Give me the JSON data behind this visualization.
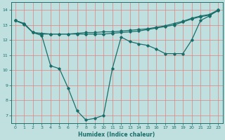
{
  "xlabel": "Humidex (Indice chaleur)",
  "bg_color": "#c0e0e0",
  "line_color": "#1a6e6a",
  "grid_color": "#e08080",
  "xlim": [
    -0.5,
    23.5
  ],
  "ylim": [
    6.5,
    14.5
  ],
  "xticks": [
    0,
    1,
    2,
    3,
    4,
    5,
    6,
    7,
    8,
    9,
    10,
    11,
    12,
    13,
    14,
    15,
    16,
    17,
    18,
    19,
    20,
    21,
    22,
    23
  ],
  "yticks": [
    7,
    8,
    9,
    10,
    11,
    12,
    13,
    14
  ],
  "line1_x": [
    0,
    1,
    2,
    3,
    4,
    5,
    6,
    7,
    8,
    9,
    10,
    11,
    12,
    13,
    14,
    15,
    16,
    17,
    18,
    19,
    20,
    21,
    22,
    23
  ],
  "line1_y": [
    13.3,
    13.1,
    12.5,
    12.3,
    10.3,
    10.1,
    8.8,
    7.3,
    6.7,
    6.8,
    7.0,
    10.1,
    12.2,
    11.9,
    11.75,
    11.65,
    11.4,
    11.1,
    11.1,
    11.1,
    12.0,
    13.3,
    13.6,
    14.0
  ],
  "line2_x": [
    0,
    1,
    2,
    3,
    4,
    5,
    6,
    7,
    8,
    9,
    10,
    11,
    12,
    13,
    14,
    15,
    16,
    17,
    18,
    19,
    20,
    21,
    22,
    23
  ],
  "line2_y": [
    13.3,
    13.1,
    12.5,
    12.45,
    12.4,
    12.4,
    12.4,
    12.45,
    12.5,
    12.5,
    12.55,
    12.55,
    12.6,
    12.65,
    12.7,
    12.75,
    12.85,
    12.95,
    13.1,
    13.25,
    13.45,
    13.6,
    13.7,
    14.0
  ],
  "line3_x": [
    0,
    1,
    2,
    3,
    4,
    5,
    6,
    7,
    8,
    9,
    10,
    11,
    12,
    13,
    14,
    15,
    16,
    17,
    18,
    19,
    20,
    21,
    22,
    23
  ],
  "line3_y": [
    13.3,
    13.05,
    12.5,
    12.4,
    12.4,
    12.4,
    12.4,
    12.4,
    12.4,
    12.4,
    12.4,
    12.45,
    12.5,
    12.55,
    12.6,
    12.7,
    12.8,
    12.9,
    13.0,
    13.2,
    13.4,
    13.55,
    13.65,
    13.95
  ]
}
